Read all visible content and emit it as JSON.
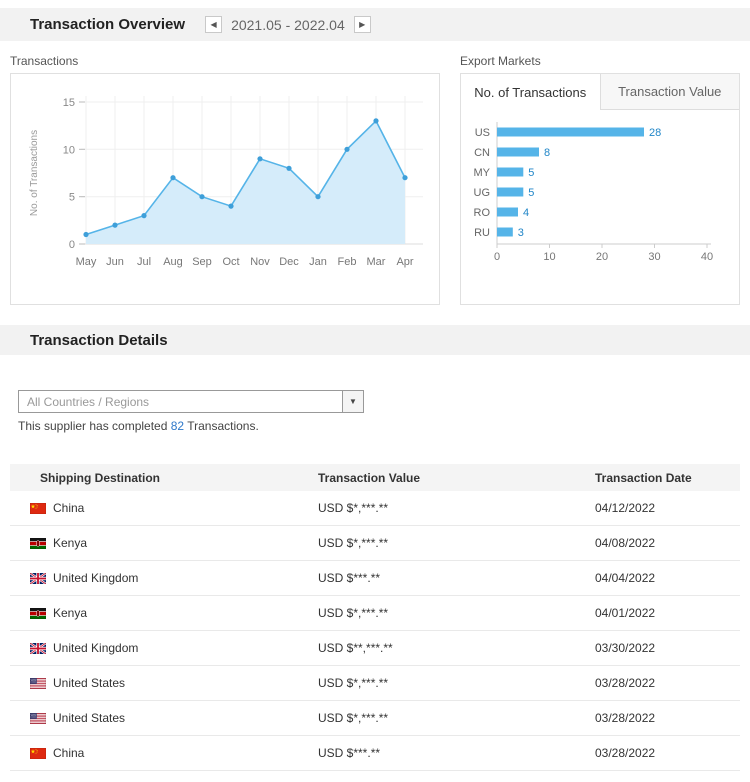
{
  "icons": {
    "prev": "◀",
    "next": "▶",
    "dropdown": "▼"
  },
  "header": {
    "title": "Transaction Overview",
    "date_range": "2021.05 - 2022.04"
  },
  "transactions_panel": {
    "label": "Transactions"
  },
  "export_markets": {
    "label": "Export Markets",
    "tabs": [
      {
        "label": "No. of Transactions",
        "active": true
      },
      {
        "label": "Transaction Value",
        "active": false
      }
    ]
  },
  "details": {
    "title": "Transaction Details",
    "filter_value": "All Countries / Regions",
    "summary_prefix": "This supplier has completed ",
    "summary_count": "82",
    "summary_suffix": " Transactions.",
    "table": {
      "headers": [
        "Shipping Destination",
        "Transaction Value",
        "Transaction Date"
      ],
      "rows": [
        {
          "country": "China",
          "flag": "cn",
          "value": "USD $*,***.**",
          "date": "04/12/2022"
        },
        {
          "country": "Kenya",
          "flag": "ke",
          "value": "USD $*,***.**",
          "date": "04/08/2022"
        },
        {
          "country": "United Kingdom",
          "flag": "gb",
          "value": "USD $***.**",
          "date": "04/04/2022"
        },
        {
          "country": "Kenya",
          "flag": "ke",
          "value": "USD $*,***.**",
          "date": "04/01/2022"
        },
        {
          "country": "United Kingdom",
          "flag": "gb",
          "value": "USD $**,***.**",
          "date": "03/30/2022"
        },
        {
          "country": "United States",
          "flag": "us",
          "value": "USD $*,***.**",
          "date": "03/28/2022"
        },
        {
          "country": "United States",
          "flag": "us",
          "value": "USD $*,***.**",
          "date": "03/28/2022"
        },
        {
          "country": "China",
          "flag": "cn",
          "value": "USD $***.**",
          "date": "03/28/2022"
        }
      ]
    }
  },
  "chart_data": [
    {
      "type": "line",
      "title": "Transactions",
      "x": [
        "May",
        "Jun",
        "Jul",
        "Aug",
        "Sep",
        "Oct",
        "Nov",
        "Dec",
        "Jan",
        "Feb",
        "Mar",
        "Apr"
      ],
      "values": [
        1,
        2,
        3,
        7,
        5,
        4,
        9,
        8,
        5,
        10,
        13,
        7
      ],
      "xlabel": "",
      "ylabel": "No. of Transactions",
      "ylim": [
        0,
        15
      ],
      "yticks": [
        0,
        5,
        10,
        15
      ],
      "grid": true,
      "area_fill": true,
      "legend": false
    },
    {
      "type": "bar",
      "orientation": "horizontal",
      "title": "Export Markets - No. of Transactions",
      "categories": [
        "US",
        "CN",
        "MY",
        "UG",
        "RO",
        "RU"
      ],
      "values": [
        28,
        8,
        5,
        5,
        4,
        3
      ],
      "xlim": [
        0,
        40
      ],
      "xticks": [
        0,
        10,
        20,
        30,
        40
      ],
      "value_labels": true,
      "legend": false
    }
  ],
  "colors": {
    "accent": "#55b4e8",
    "area_fill": "#d5ecfa",
    "dot": "#3e9fd9",
    "value_label": "#2186c8",
    "link": "#2e78c9",
    "header_bg": "#f2f2f2"
  }
}
